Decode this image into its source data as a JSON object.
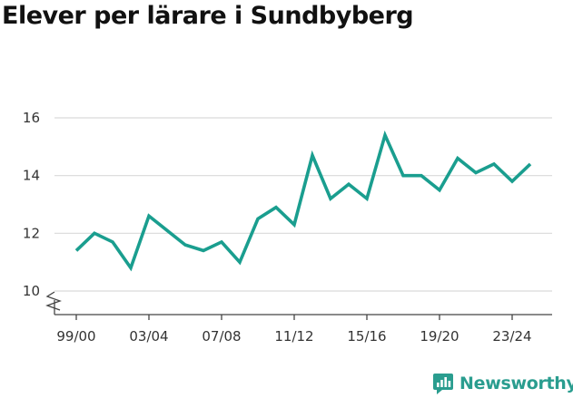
{
  "chart_data": {
    "type": "line",
    "title": "Elever per lärare i Sundbyberg",
    "xlabel": "",
    "ylabel": "",
    "ylim": [
      10,
      16
    ],
    "yticks": [
      10,
      12,
      14,
      16
    ],
    "axis_break": true,
    "grid": true,
    "line_color": "#1a9e8f",
    "x_tick_labels": [
      "99/00",
      "03/04",
      "07/08",
      "11/12",
      "15/16",
      "19/20",
      "23/24"
    ],
    "x": [
      "99/00",
      "00/01",
      "01/02",
      "02/03",
      "03/04",
      "04/05",
      "05/06",
      "06/07",
      "07/08",
      "08/09",
      "09/10",
      "10/11",
      "11/12",
      "12/13",
      "13/14",
      "14/15",
      "15/16",
      "16/17",
      "17/18",
      "18/19",
      "19/20",
      "20/21",
      "21/22",
      "22/23",
      "23/24",
      "24/25"
    ],
    "series": [
      {
        "values": [
          11.4,
          12.0,
          11.7,
          10.8,
          12.6,
          12.1,
          11.6,
          11.4,
          11.7,
          11.0,
          12.5,
          12.9,
          12.3,
          14.7,
          13.2,
          13.7,
          13.2,
          15.4,
          14.0,
          14.0,
          13.5,
          14.6,
          14.1,
          14.4,
          13.8,
          14.4
        ]
      }
    ]
  },
  "brand": {
    "name": "Newsworthy",
    "icon": "newsworthy-logo-icon",
    "color": "#2a9d8f"
  }
}
